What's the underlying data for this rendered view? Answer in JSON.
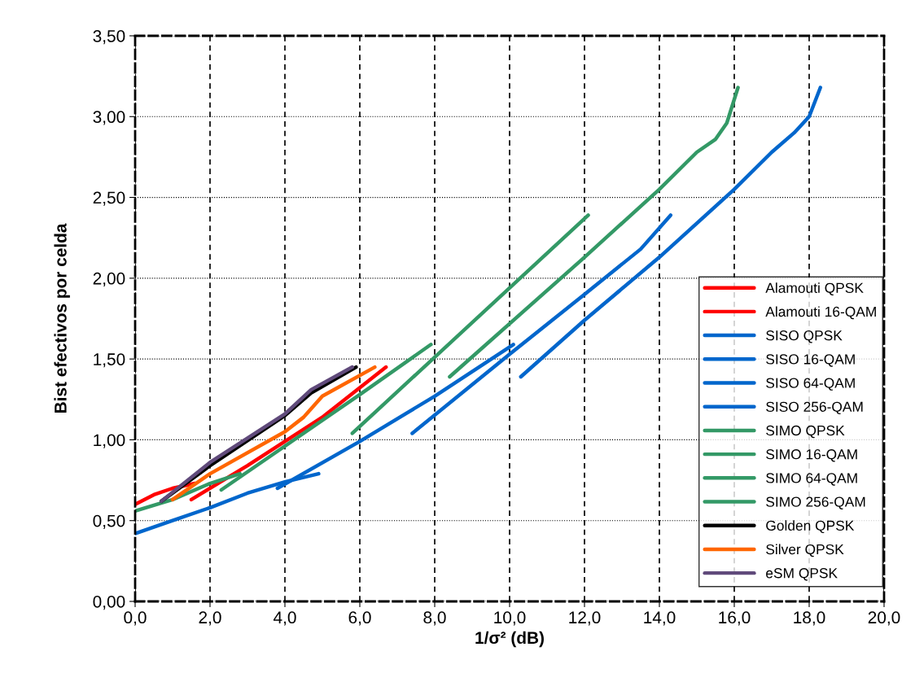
{
  "chart_data": {
    "type": "line",
    "xlabel": "1/σ² (dB)",
    "ylabel": "Bist efectivos por celda",
    "xlim": [
      0,
      20
    ],
    "ylim": [
      0,
      3.5
    ],
    "xticks": [
      {
        "value": 0,
        "label": "0,0"
      },
      {
        "value": 2,
        "label": "2,0"
      },
      {
        "value": 4,
        "label": "4,0"
      },
      {
        "value": 6,
        "label": "6,0"
      },
      {
        "value": 8,
        "label": "8,0"
      },
      {
        "value": 10,
        "label": "10,0"
      },
      {
        "value": 12,
        "label": "12,0"
      },
      {
        "value": 14,
        "label": "14,0"
      },
      {
        "value": 16,
        "label": "16,0"
      },
      {
        "value": 18,
        "label": "18,0"
      },
      {
        "value": 20,
        "label": "20,0"
      }
    ],
    "yticks": [
      {
        "value": 0,
        "label": "0,00"
      },
      {
        "value": 0.5,
        "label": "0,50"
      },
      {
        "value": 1,
        "label": "1,00"
      },
      {
        "value": 1.5,
        "label": "1,50"
      },
      {
        "value": 2,
        "label": "2,00"
      },
      {
        "value": 2.5,
        "label": "2,50"
      },
      {
        "value": 3,
        "label": "3,00"
      },
      {
        "value": 3.5,
        "label": "3,50"
      }
    ],
    "grid": true,
    "legend": "right",
    "marker": "none",
    "line_style": "solid",
    "series": [
      {
        "name": "Alamouti QPSK",
        "color": "#ff0000",
        "x": [
          0,
          0.5,
          1.0,
          1.6
        ],
        "values": [
          0.6,
          0.66,
          0.7,
          0.73
        ]
      },
      {
        "name": "Alamouti 16-QAM",
        "color": "#ff0000",
        "x": [
          1.5,
          3.0,
          4.0,
          5.0,
          6.7
        ],
        "values": [
          0.63,
          0.84,
          0.99,
          1.14,
          1.45
        ]
      },
      {
        "name": "SISO QPSK",
        "color": "#0066cc",
        "x": [
          0,
          1,
          2,
          3,
          4,
          4.9
        ],
        "values": [
          0.42,
          0.5,
          0.58,
          0.67,
          0.74,
          0.79
        ]
      },
      {
        "name": "SISO 16-QAM",
        "color": "#0066cc",
        "x": [
          3.8,
          6,
          8,
          10.1
        ],
        "values": [
          0.7,
          0.99,
          1.27,
          1.59
        ]
      },
      {
        "name": "SISO 64-QAM",
        "color": "#0066cc",
        "x": [
          7.4,
          10,
          12,
          13.5,
          14.3
        ],
        "values": [
          1.04,
          1.53,
          1.9,
          2.18,
          2.39
        ]
      },
      {
        "name": "SISO 256-QAM",
        "color": "#0066cc",
        "x": [
          10.3,
          12,
          14,
          16,
          17,
          17.6,
          18,
          18.3
        ],
        "values": [
          1.39,
          1.74,
          2.13,
          2.55,
          2.78,
          2.9,
          3.0,
          3.18
        ]
      },
      {
        "name": "SIMO QPSK",
        "color": "#339966",
        "x": [
          0,
          1,
          2,
          2.8
        ],
        "values": [
          0.56,
          0.63,
          0.73,
          0.79
        ]
      },
      {
        "name": "SIMO 16-QAM",
        "color": "#339966",
        "x": [
          2.3,
          6,
          7.9
        ],
        "values": [
          0.69,
          1.28,
          1.59
        ]
      },
      {
        "name": "SIMO 64-QAM",
        "color": "#339966",
        "x": [
          5.8,
          12.1
        ],
        "values": [
          1.04,
          2.39
        ]
      },
      {
        "name": "SIMO 256-QAM",
        "color": "#339966",
        "x": [
          8.4,
          12,
          14,
          15,
          15.5,
          15.8,
          16.1
        ],
        "values": [
          1.39,
          2.13,
          2.55,
          2.78,
          2.86,
          2.96,
          3.18
        ]
      },
      {
        "name": "Golden QPSK",
        "color": "#000000",
        "x": [
          0.7,
          2,
          4,
          4.7,
          5.9
        ],
        "values": [
          0.62,
          0.84,
          1.15,
          1.29,
          1.45
        ]
      },
      {
        "name": "Silver QPSK",
        "color": "#ff6600",
        "x": [
          1.0,
          2,
          4,
          4.5,
          5.0,
          6.4
        ],
        "values": [
          0.63,
          0.79,
          1.05,
          1.14,
          1.27,
          1.45
        ]
      },
      {
        "name": "eSM QPSK",
        "color": "#604a7b",
        "x": [
          0.7,
          2,
          4,
          4.7,
          5.8
        ],
        "values": [
          0.62,
          0.86,
          1.16,
          1.31,
          1.45
        ]
      }
    ]
  }
}
